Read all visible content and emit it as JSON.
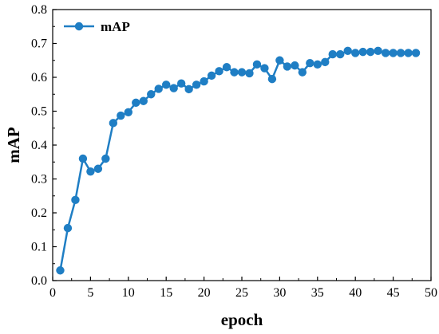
{
  "chart_data": {
    "type": "line",
    "xlabel": "epoch",
    "ylabel": "mAP",
    "xlim": [
      0,
      50
    ],
    "ylim": [
      0.0,
      0.8
    ],
    "x_ticks": [
      "0",
      "5",
      "10",
      "15",
      "20",
      "25",
      "30",
      "35",
      "40",
      "45",
      "50"
    ],
    "y_ticks": [
      "0.0",
      "0.1",
      "0.2",
      "0.3",
      "0.4",
      "0.5",
      "0.6",
      "0.7",
      "0.8"
    ],
    "legend_position": "top-left",
    "grid": false,
    "series": [
      {
        "name": "mAP",
        "color": "#1f7ec4",
        "marker": "circle",
        "x": [
          1,
          2,
          3,
          4,
          5,
          6,
          7,
          8,
          9,
          10,
          11,
          12,
          13,
          14,
          15,
          16,
          17,
          18,
          19,
          20,
          21,
          22,
          23,
          24,
          25,
          26,
          27,
          28,
          29,
          30,
          31,
          32,
          33,
          34,
          35,
          36,
          37,
          38,
          39,
          40,
          41,
          42,
          43,
          44,
          45,
          46,
          47,
          48
        ],
        "values": [
          0.03,
          0.155,
          0.238,
          0.36,
          0.322,
          0.33,
          0.36,
          0.465,
          0.487,
          0.497,
          0.525,
          0.53,
          0.55,
          0.566,
          0.578,
          0.568,
          0.582,
          0.565,
          0.578,
          0.588,
          0.605,
          0.618,
          0.63,
          0.615,
          0.615,
          0.612,
          0.638,
          0.627,
          0.595,
          0.65,
          0.632,
          0.635,
          0.615,
          0.642,
          0.638,
          0.645,
          0.668,
          0.668,
          0.678,
          0.672,
          0.675,
          0.675,
          0.678,
          0.672,
          0.672,
          0.672,
          0.672,
          0.672
        ]
      }
    ]
  }
}
